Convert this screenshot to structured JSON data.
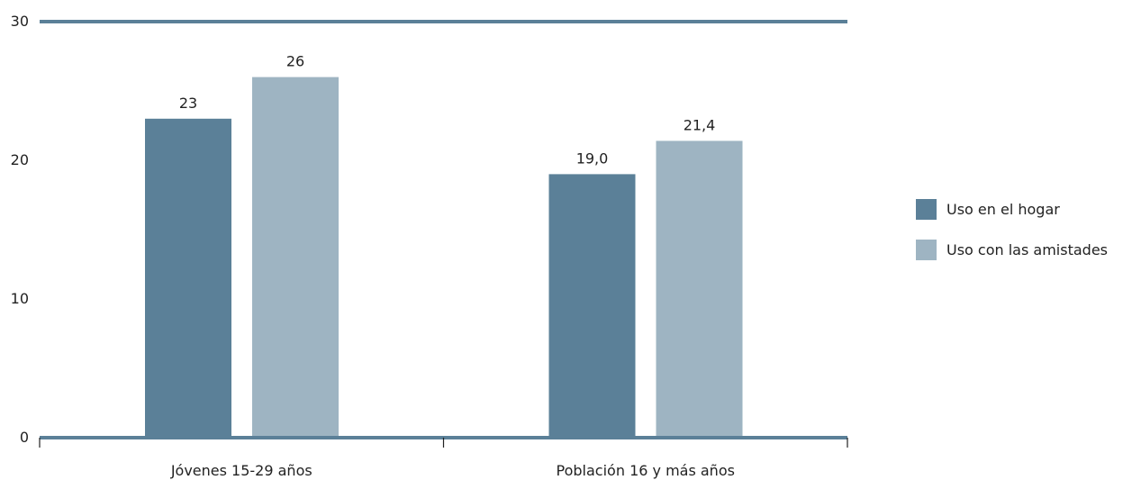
{
  "chart_data": {
    "type": "bar",
    "categories": [
      "Jóvenes 15-29 años",
      "Población 16 y más años"
    ],
    "series": [
      {
        "name": "Uso en el hogar",
        "color": "#5b8098",
        "values": [
          23,
          19.0
        ],
        "labels": [
          "23",
          "19,0"
        ]
      },
      {
        "name": "Uso con las amistades",
        "color": "#9eb4c2",
        "values": [
          26,
          21.4
        ],
        "labels": [
          "26",
          "21,4"
        ]
      }
    ],
    "yticks": [
      0,
      10,
      20,
      30
    ],
    "ylim": [
      0,
      30
    ],
    "xlabel": "",
    "ylabel": "",
    "title": "",
    "legend_position": "right",
    "axis_color": "#5b8098",
    "grid": false
  }
}
